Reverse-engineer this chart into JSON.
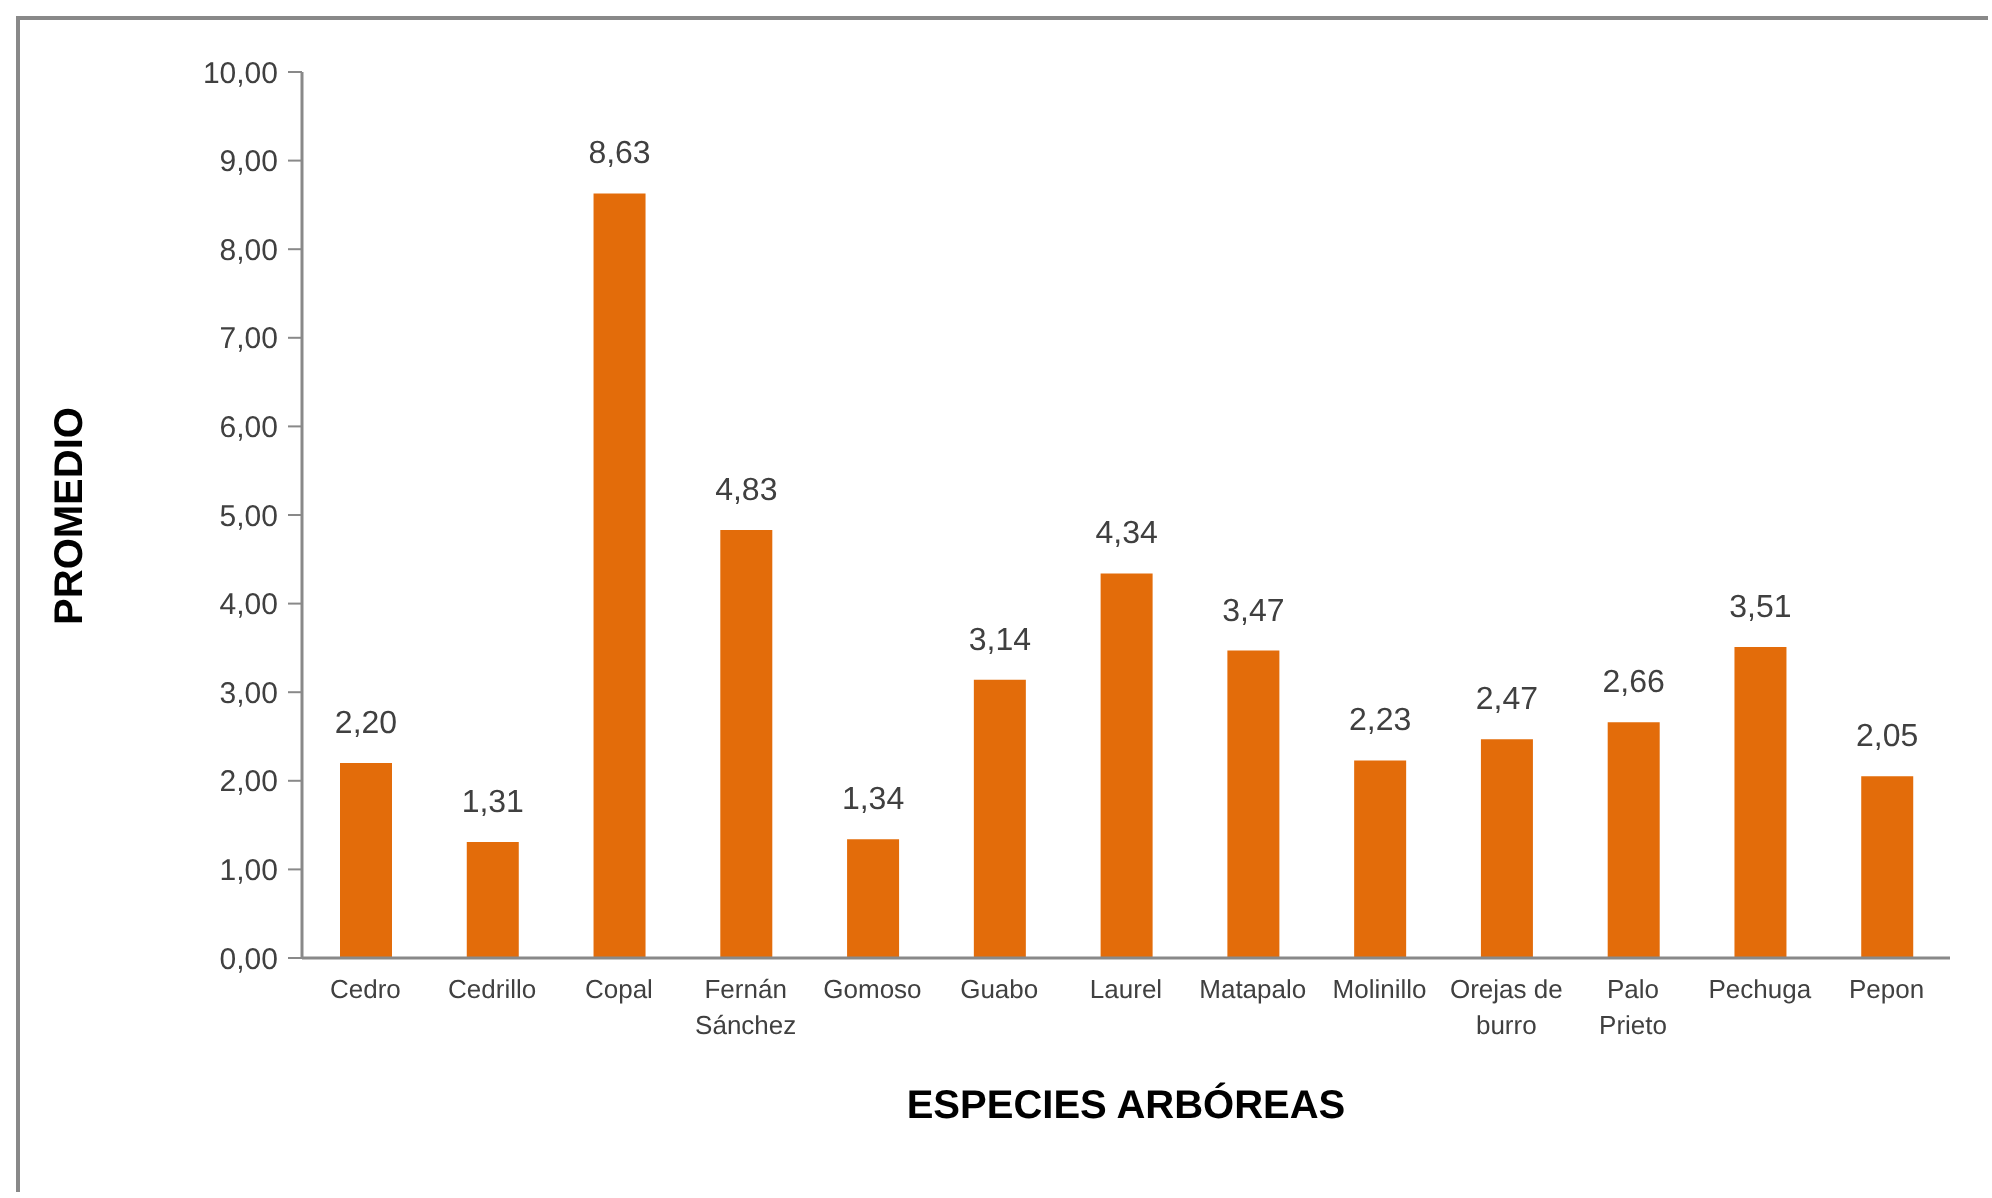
{
  "chart_data": {
    "type": "bar",
    "xlabel": "ESPECIES ARBÓREAS",
    "ylabel": "PROMEDIO",
    "categories": [
      "Cedro",
      "Cedrillo",
      "Copal",
      "Fernán Sánchez",
      "Gomoso",
      "Guabo",
      "Laurel",
      "Matapalo",
      "Molinillo",
      "Orejas de burro",
      "Palo Prieto",
      "Pechuga",
      "Pepon"
    ],
    "values": [
      2.2,
      1.31,
      8.63,
      4.83,
      1.34,
      3.14,
      4.34,
      3.47,
      2.23,
      2.47,
      2.66,
      3.51,
      2.05
    ],
    "value_labels": [
      "2,20",
      "1,31",
      "8,63",
      "4,83",
      "1,34",
      "3,14",
      "4,34",
      "3,47",
      "2,23",
      "2,47",
      "2,66",
      "3,51",
      "2,05"
    ],
    "color": "#e36c0a",
    "ylim": [
      0,
      10
    ],
    "yticks": [
      {
        "value": 0,
        "label": "0,00"
      },
      {
        "value": 1,
        "label": "1,00"
      },
      {
        "value": 2,
        "label": "2,00"
      },
      {
        "value": 3,
        "label": "3,00"
      },
      {
        "value": 4,
        "label": "4,00"
      },
      {
        "value": 5,
        "label": "5,00"
      },
      {
        "value": 6,
        "label": "6,00"
      },
      {
        "value": 7,
        "label": "7,00"
      },
      {
        "value": 8,
        "label": "8,00"
      },
      {
        "value": 9,
        "label": "9,00"
      },
      {
        "value": 10,
        "label": "10,00"
      }
    ]
  }
}
